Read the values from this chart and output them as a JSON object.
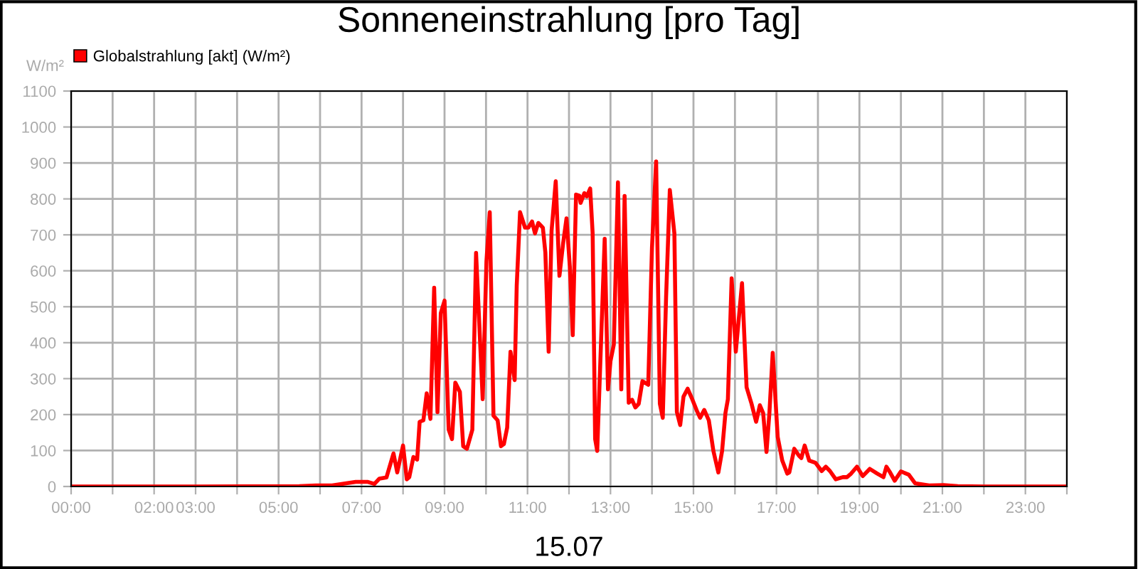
{
  "chart_data": {
    "type": "line",
    "title": "Sonneneinstrahlung [pro Tag]",
    "xlabel": "15.07",
    "ylabel": "W/m²",
    "series": [
      {
        "name": "Globalstrahlung [akt] (W/m²)",
        "color": "#ff0000",
        "x": [
          0,
          3,
          5.5,
          5.9,
          6.29,
          6.86,
          7.14,
          7.31,
          7.43,
          7.6,
          7.77,
          7.86,
          8.0,
          8.09,
          8.15,
          8.25,
          8.34,
          8.4,
          8.49,
          8.57,
          8.66,
          8.75,
          8.83,
          8.91,
          9.0,
          9.1,
          9.18,
          9.26,
          9.37,
          9.45,
          9.54,
          9.67,
          9.76,
          9.92,
          10.01,
          10.09,
          10.18,
          10.28,
          10.36,
          10.43,
          10.51,
          10.59,
          10.69,
          10.74,
          10.82,
          10.94,
          11.02,
          11.11,
          11.18,
          11.26,
          11.37,
          11.43,
          11.51,
          11.58,
          11.68,
          11.77,
          11.86,
          11.94,
          12.02,
          12.09,
          12.17,
          12.25,
          12.28,
          12.37,
          12.43,
          12.51,
          12.57,
          12.63,
          12.68,
          12.78,
          12.86,
          12.94,
          13.0,
          13.08,
          13.18,
          13.26,
          13.34,
          13.44,
          13.52,
          13.6,
          13.68,
          13.77,
          13.91,
          14.0,
          14.1,
          14.19,
          14.26,
          14.34,
          14.43,
          14.54,
          14.6,
          14.68,
          14.76,
          14.86,
          14.97,
          15.08,
          15.16,
          15.26,
          15.37,
          15.48,
          15.6,
          15.69,
          15.77,
          15.83,
          15.92,
          16.02,
          16.17,
          16.28,
          16.4,
          16.51,
          16.6,
          16.68,
          16.76,
          16.83,
          16.91,
          17.03,
          17.14,
          17.26,
          17.31,
          17.43,
          17.54,
          17.6,
          17.68,
          17.79,
          17.94,
          18.09,
          18.19,
          18.29,
          18.43,
          18.6,
          18.7,
          18.8,
          18.94,
          19.08,
          19.25,
          19.43,
          19.58,
          19.65,
          19.74,
          19.85,
          20.0,
          20.19,
          20.34,
          20.68,
          21.03,
          21.37,
          22,
          24
        ],
        "values": [
          0,
          0,
          1,
          3,
          3,
          13,
          13,
          7,
          22,
          25,
          92,
          39,
          114,
          20,
          26,
          82,
          75,
          180,
          184,
          259,
          188,
          553,
          207,
          482,
          517,
          158,
          132,
          289,
          263,
          112,
          105,
          158,
          650,
          243,
          626,
          763,
          197,
          184,
          112,
          118,
          164,
          375,
          296,
          559,
          763,
          720,
          720,
          737,
          704,
          733,
          720,
          651,
          375,
          711,
          849,
          586,
          678,
          746,
          612,
          421,
          812,
          809,
          789,
          816,
          807,
          829,
          704,
          132,
          99,
          428,
          689,
          270,
          349,
          395,
          846,
          270,
          808,
          233,
          241,
          220,
          230,
          293,
          283,
          664,
          904,
          230,
          191,
          526,
          825,
          704,
          207,
          171,
          250,
          272,
          243,
          211,
          191,
          213,
          184,
          99,
          39,
          99,
          204,
          243,
          579,
          375,
          566,
          276,
          230,
          180,
          226,
          204,
          96,
          204,
          372,
          138,
          72,
          36,
          39,
          105,
          86,
          79,
          114,
          72,
          66,
          43,
          55,
          43,
          20,
          26,
          26,
          36,
          55,
          29,
          49,
          36,
          26,
          55,
          39,
          16,
          42,
          33,
          9,
          3,
          4,
          1,
          0,
          0
        ]
      }
    ],
    "xlim": [
      0,
      24
    ],
    "xticks": [
      {
        "value": 0,
        "label": "00:00"
      },
      {
        "value": 1,
        "label": null
      },
      {
        "value": 2,
        "label": "02:00"
      },
      {
        "value": 3,
        "label": "03:00"
      },
      {
        "value": 4,
        "label": null
      },
      {
        "value": 5,
        "label": "05:00"
      },
      {
        "value": 6,
        "label": null
      },
      {
        "value": 7,
        "label": "07:00"
      },
      {
        "value": 8,
        "label": null
      },
      {
        "value": 9,
        "label": "09:00"
      },
      {
        "value": 10,
        "label": null
      },
      {
        "value": 11,
        "label": "11:00"
      },
      {
        "value": 12,
        "label": null
      },
      {
        "value": 13,
        "label": "13:00"
      },
      {
        "value": 14,
        "label": null
      },
      {
        "value": 15,
        "label": "15:00"
      },
      {
        "value": 16,
        "label": null
      },
      {
        "value": 17,
        "label": "17:00"
      },
      {
        "value": 18,
        "label": null
      },
      {
        "value": 19,
        "label": "19:00"
      },
      {
        "value": 20,
        "label": null
      },
      {
        "value": 21,
        "label": "21:00"
      },
      {
        "value": 22,
        "label": null
      },
      {
        "value": 23,
        "label": "23:00"
      },
      {
        "value": 24,
        "label": null
      }
    ],
    "ylim": [
      0,
      1100
    ],
    "yticks": [
      0,
      100,
      200,
      300,
      400,
      500,
      600,
      700,
      800,
      900,
      1000,
      1100
    ],
    "grid": true,
    "legend": "top left",
    "marker": "none",
    "line_style": "solid"
  }
}
